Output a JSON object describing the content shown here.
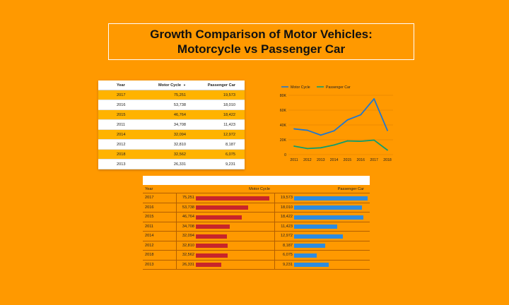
{
  "title": {
    "line1": "Growth Comparison of Motor Vehicles:",
    "line2": "Motorcycle vs Passenger Car"
  },
  "table": {
    "headers": [
      "Year",
      "Motor Cycle",
      "Passenger Car"
    ],
    "sort_indicator": "▼",
    "rows": [
      {
        "year": "2017",
        "motor": "75,251",
        "car": "19,573"
      },
      {
        "year": "2016",
        "motor": "53,738",
        "car": "18,010"
      },
      {
        "year": "2015",
        "motor": "46,764",
        "car": "18,422"
      },
      {
        "year": "2011",
        "motor": "34,708",
        "car": "11,423"
      },
      {
        "year": "2014",
        "motor": "32,094",
        "car": "12,972"
      },
      {
        "year": "2012",
        "motor": "32,810",
        "car": "8,187"
      },
      {
        "year": "2018",
        "motor": "32,562",
        "car": "6,075"
      },
      {
        "year": "2013",
        "motor": "26,331",
        "car": "9,231"
      }
    ]
  },
  "bar_table": {
    "headers": {
      "year": "Year",
      "motor": "Motor Cycle",
      "car": "Passenger Car"
    },
    "max_motor": 75251,
    "max_car": 19573
  },
  "chart_data": [
    {
      "type": "line",
      "title": "",
      "x": [
        "2011",
        "2012",
        "2013",
        "2014",
        "2015",
        "2016",
        "2017",
        "2018"
      ],
      "series": [
        {
          "name": "Motor Cycle",
          "color": "#1f77d0",
          "values": [
            34708,
            32810,
            26331,
            32094,
            46764,
            53738,
            75251,
            32562
          ]
        },
        {
          "name": "Passenger Car",
          "color": "#109d6c",
          "values": [
            11423,
            8187,
            9231,
            12972,
            18422,
            18010,
            19573,
            6075
          ]
        }
      ],
      "yticks": [
        "0",
        "20K",
        "40K",
        "60K",
        "80K"
      ],
      "ylim": [
        0,
        80000
      ],
      "legend": "top-left",
      "xlabel": "",
      "ylabel": ""
    }
  ],
  "colors": {
    "background": "#ff9900",
    "row_highlight": "#ffb300",
    "motor_bar": "#c8252a",
    "car_bar": "#2d8ce0"
  }
}
